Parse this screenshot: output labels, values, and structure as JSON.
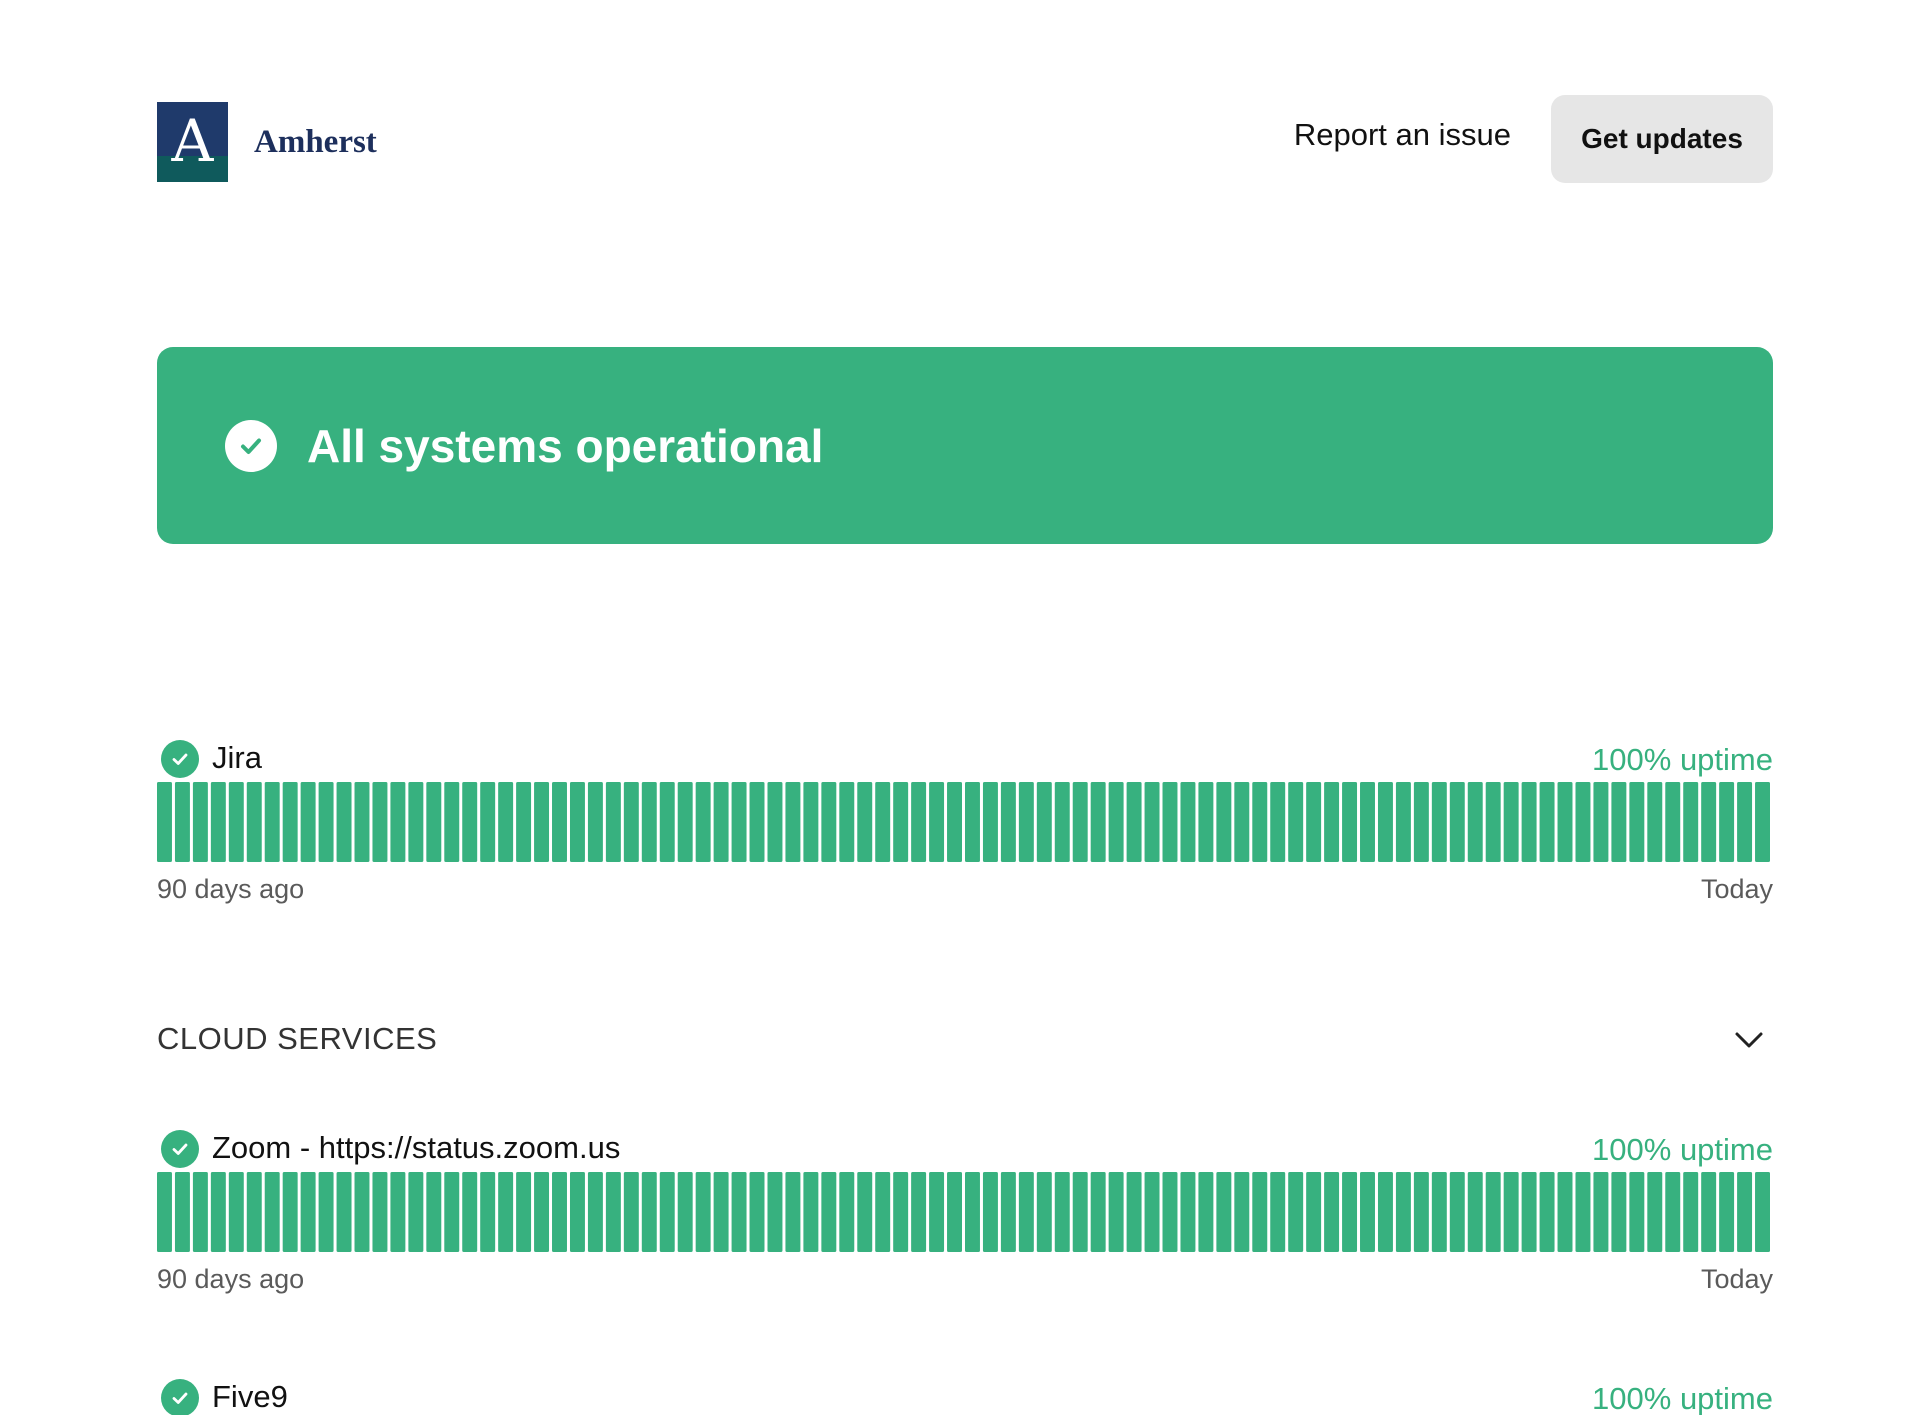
{
  "header": {
    "brand_letter": "A",
    "brand_name": "Amherst",
    "report_label": "Report an issue",
    "updates_label": "Get updates"
  },
  "banner": {
    "title": "All systems operational"
  },
  "components": [
    {
      "name": "Jira",
      "uptime": "100% uptime",
      "range_start": "90 days ago",
      "range_end": "Today",
      "days": 90,
      "status": "operational"
    },
    {
      "name": "Zoom - https://status.zoom.us",
      "uptime": "100% uptime",
      "range_start": "90 days ago",
      "range_end": "Today",
      "days": 90,
      "status": "operational"
    },
    {
      "name": "Five9",
      "uptime": "100% uptime",
      "status": "operational"
    }
  ],
  "group": {
    "title": "CLOUD SERVICES",
    "expanded": true
  },
  "colors": {
    "operational": "#37b17f",
    "brand_navy": "#1f3a6b",
    "brand_teal": "#0f5a5c"
  },
  "icons": {
    "status": "check-circle-icon",
    "toggle": "chevron-down-icon"
  }
}
